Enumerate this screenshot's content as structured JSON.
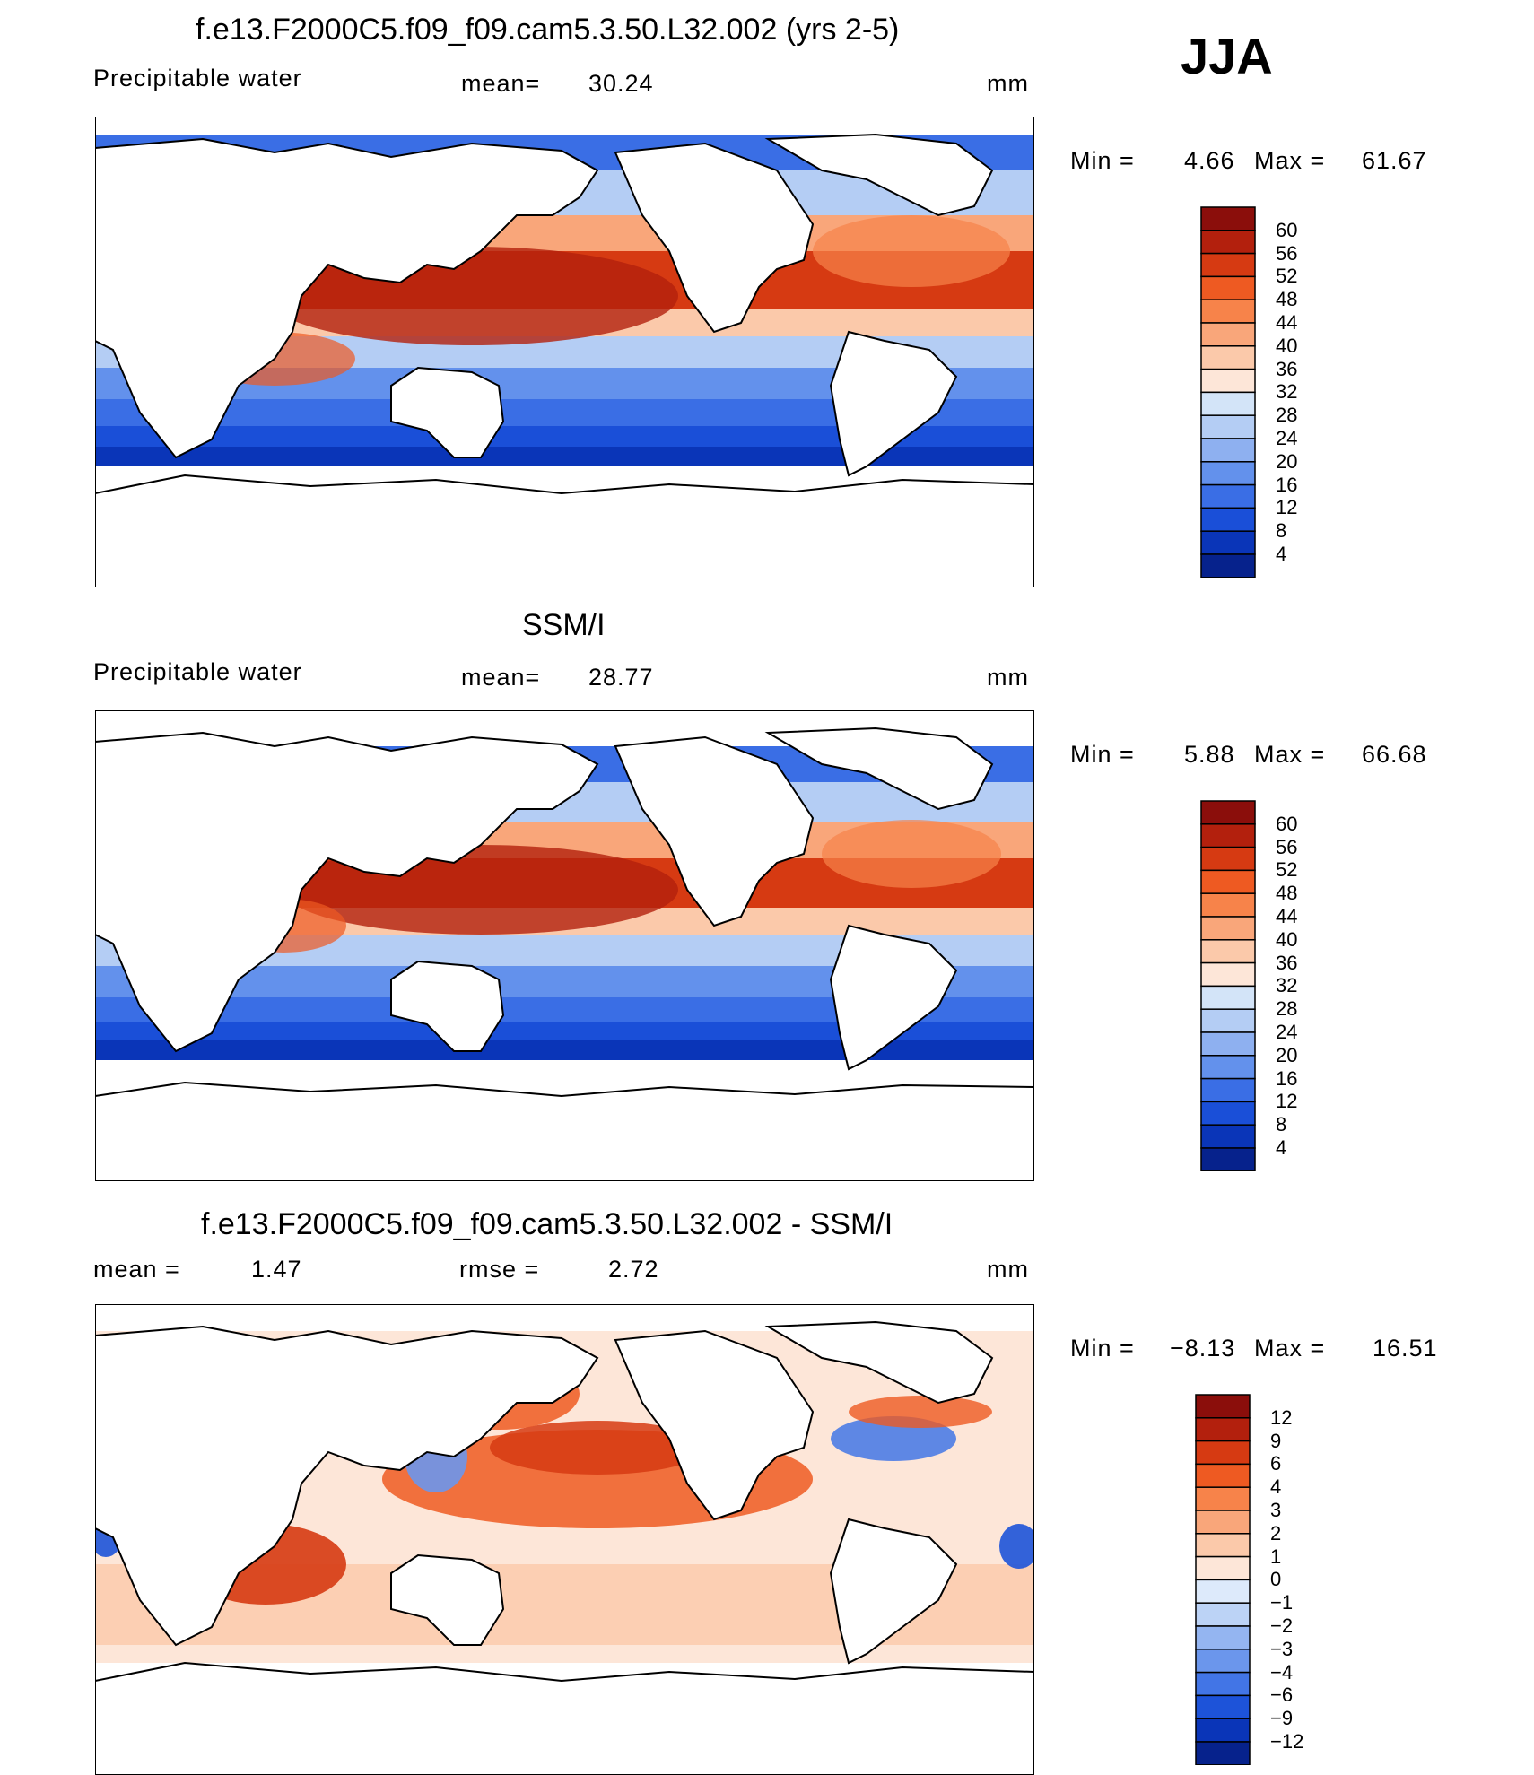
{
  "season": "JJA",
  "panels": [
    {
      "title": "f.e13.F2000C5.f09_f09.cam5.3.50.L32.002 (yrs 2-5)",
      "left_label": "Precipitable water",
      "stat_label": "mean=",
      "stat_value": "30.24",
      "units": "mm",
      "min_label": "Min =",
      "min_value": "4.66",
      "max_label": "Max =",
      "max_value": "61.67",
      "colorbar_levels": [
        "60",
        "56",
        "52",
        "48",
        "44",
        "40",
        "36",
        "32",
        "28",
        "24",
        "20",
        "16",
        "12",
        "8",
        "4"
      ]
    },
    {
      "title": "SSM/I",
      "left_label": "Precipitable water",
      "stat_label": "mean=",
      "stat_value": "28.77",
      "units": "mm",
      "min_label": "Min =",
      "min_value": "5.88",
      "max_label": "Max =",
      "max_value": "66.68",
      "colorbar_levels": [
        "60",
        "56",
        "52",
        "48",
        "44",
        "40",
        "36",
        "32",
        "28",
        "24",
        "20",
        "16",
        "12",
        "8",
        "4"
      ]
    },
    {
      "title": "f.e13.F2000C5.f09_f09.cam5.3.50.L32.002 - SSM/I",
      "left_label": "mean =",
      "left_value": "1.47",
      "stat_label": "rmse =",
      "stat_value": "2.72",
      "units": "mm",
      "min_label": "Min =",
      "min_value": "−8.13",
      "max_label": "Max =",
      "max_value": "16.51",
      "colorbar_levels": [
        "12",
        "9",
        "6",
        "4",
        "3",
        "2",
        "1",
        "0",
        "−1",
        "−2",
        "−3",
        "−4",
        "−6",
        "−9",
        "−12"
      ]
    }
  ],
  "colors": {
    "abs_scale": [
      "#8b0e0b",
      "#b3200d",
      "#d63a12",
      "#ee5a22",
      "#f7834a",
      "#f9a67a",
      "#fbc9aa",
      "#fde6d8",
      "#d3e4f8",
      "#b4cdf4",
      "#8eb0f0",
      "#6391ec",
      "#3a6ee5",
      "#1a4fd8",
      "#0a35b8",
      "#06228c"
    ],
    "diff_scale": [
      "#8b0e0b",
      "#b3200d",
      "#d63a12",
      "#ee5a22",
      "#f7834a",
      "#f9a67a",
      "#fbc9aa",
      "#fde6d8",
      "#ddeafb",
      "#bcd3f6",
      "#94b5f1",
      "#6b96ec",
      "#4275e6",
      "#1d53d9",
      "#0a35b8",
      "#06228c"
    ]
  }
}
